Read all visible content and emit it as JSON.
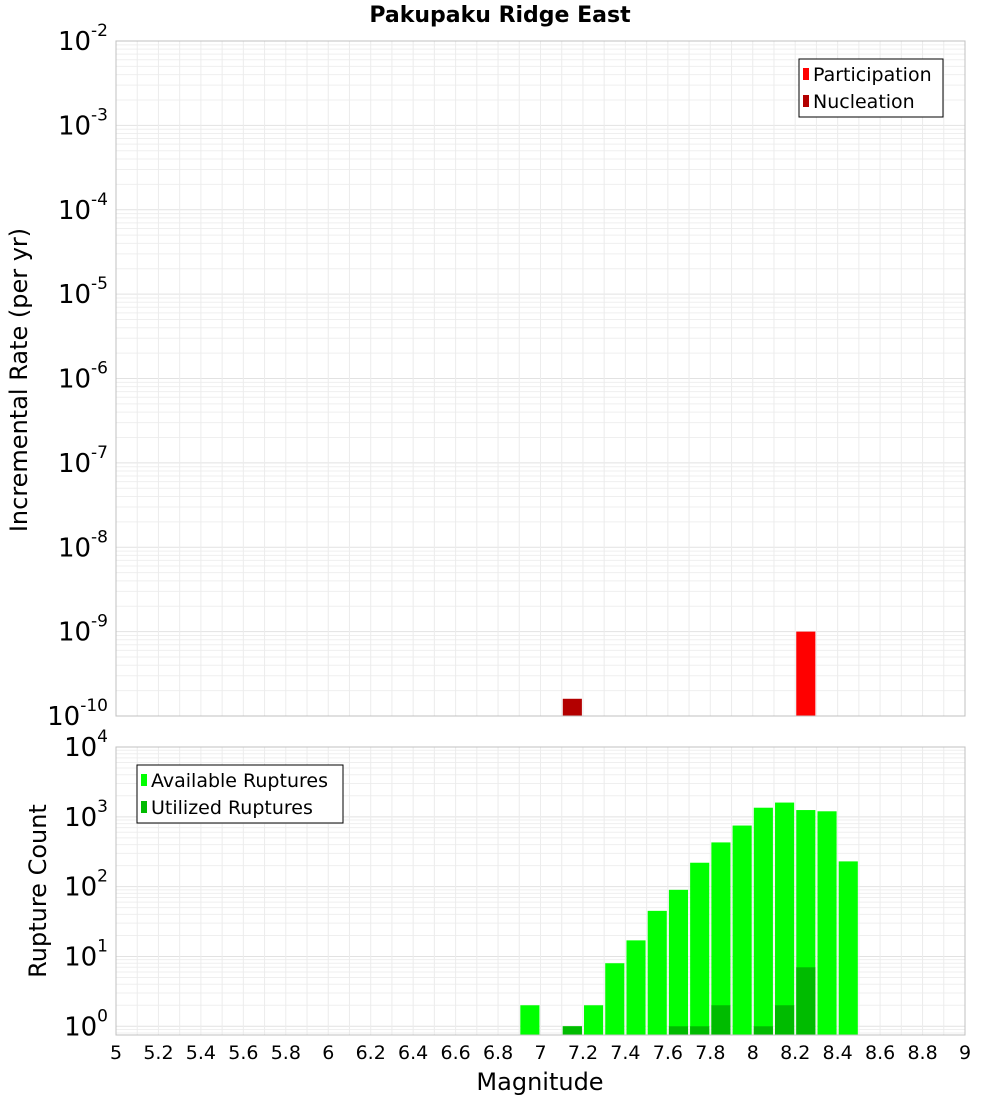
{
  "chart_data": [
    {
      "type": "bar",
      "title": "Pakupaku Ridge East",
      "xlabel": "",
      "ylabel": "Incremental Rate (per yr)",
      "yscale": "log",
      "xlim": [
        5,
        9
      ],
      "ylim": [
        1e-10,
        0.01
      ],
      "y_ticks": [
        {
          "base": "10",
          "exp": "-2",
          "value": 0.01
        },
        {
          "base": "10",
          "exp": "-3",
          "value": 0.001
        },
        {
          "base": "10",
          "exp": "-4",
          "value": 0.0001
        },
        {
          "base": "10",
          "exp": "-5",
          "value": 1e-05
        },
        {
          "base": "10",
          "exp": "-6",
          "value": 1e-06
        },
        {
          "base": "10",
          "exp": "-7",
          "value": 1e-07
        },
        {
          "base": "10",
          "exp": "-8",
          "value": 1e-08
        },
        {
          "base": "10",
          "exp": "-9",
          "value": 1e-09
        },
        {
          "base": "10",
          "exp": "-10",
          "value": 1e-10
        }
      ],
      "legend": {
        "position": "top-right",
        "entries": [
          {
            "label": "Participation",
            "color": "#ff0000"
          },
          {
            "label": "Nucleation",
            "color": "#b30000"
          }
        ]
      },
      "series": [
        {
          "name": "Participation",
          "color": "#ff0000",
          "x": [
            8.25
          ],
          "values": [
            1e-09
          ]
        },
        {
          "name": "Nucleation",
          "color": "#b30000",
          "x": [
            7.15
          ],
          "values": [
            1.6e-10
          ]
        }
      ],
      "bar_width": 0.09
    },
    {
      "type": "bar",
      "title": "",
      "xlabel": "Magnitude",
      "ylabel": "Rupture Count",
      "yscale": "log",
      "xlim": [
        5,
        9
      ],
      "ylim": [
        0.75,
        10000
      ],
      "x_ticks": [
        "5",
        "5.2",
        "5.4",
        "5.6",
        "5.8",
        "6",
        "6.2",
        "6.4",
        "6.6",
        "6.8",
        "7",
        "7.2",
        "7.4",
        "7.6",
        "7.8",
        "8",
        "8.2",
        "8.4",
        "8.6",
        "8.8",
        "9"
      ],
      "y_ticks": [
        {
          "base": "10",
          "exp": "4",
          "value": 10000
        },
        {
          "base": "10",
          "exp": "3",
          "value": 1000
        },
        {
          "base": "10",
          "exp": "2",
          "value": 100
        },
        {
          "base": "10",
          "exp": "1",
          "value": 10
        },
        {
          "base": "10",
          "exp": "0",
          "value": 1
        }
      ],
      "legend": {
        "position": "top-left",
        "entries": [
          {
            "label": "Available Ruptures",
            "color": "#00ff00"
          },
          {
            "label": "Utilized Ruptures",
            "color": "#00bb00"
          }
        ]
      },
      "series": [
        {
          "name": "Available Ruptures",
          "color": "#00ff00",
          "x": [
            6.95,
            7.15,
            7.25,
            7.35,
            7.45,
            7.55,
            7.65,
            7.75,
            7.85,
            7.95,
            8.05,
            8.15,
            8.25,
            8.35,
            8.45
          ],
          "values": [
            2,
            1,
            2,
            8,
            17,
            45,
            90,
            220,
            430,
            750,
            1350,
            1600,
            1250,
            1200,
            230
          ]
        },
        {
          "name": "Utilized Ruptures",
          "color": "#00bb00",
          "x": [
            7.15,
            7.65,
            7.75,
            7.85,
            8.05,
            8.15,
            8.25
          ],
          "values": [
            1,
            1,
            1,
            2,
            1,
            2,
            7
          ]
        }
      ],
      "bar_width": 0.09
    }
  ]
}
